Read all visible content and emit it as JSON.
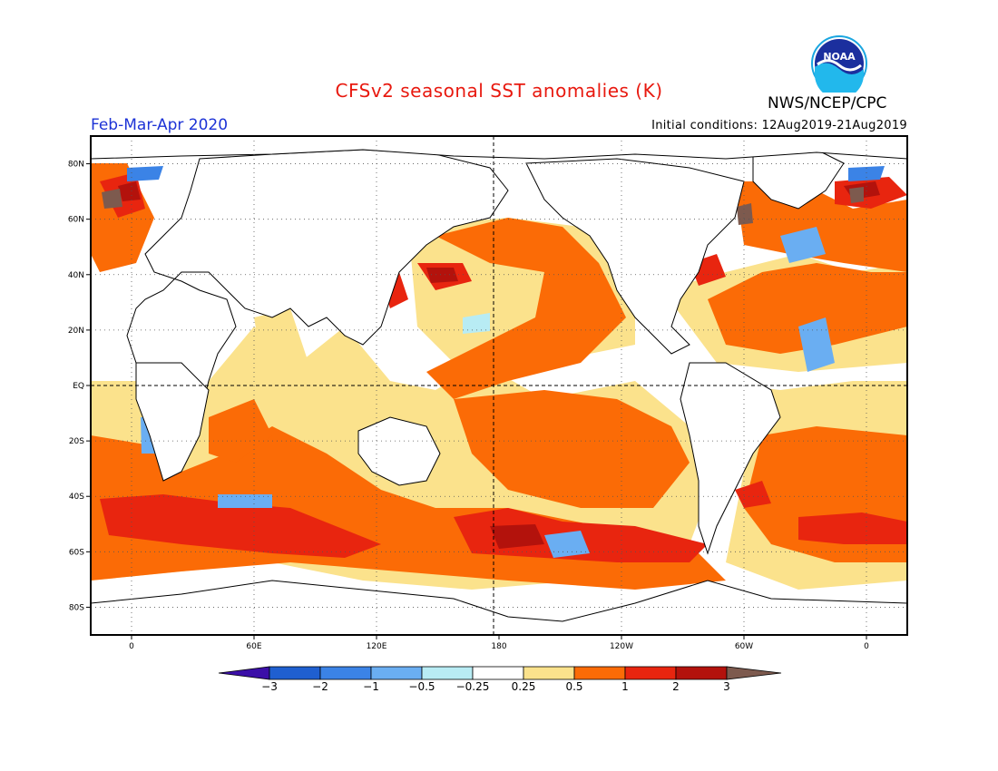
{
  "header": {
    "title": "CFSv2 seasonal SST anomalies (K)",
    "organization": "NWS/NCEP/CPC",
    "logo_text": "NOAA",
    "period": "Feb-Mar-Apr 2020",
    "initial_conditions": "Initial conditions: 12Aug2019-21Aug2019"
  },
  "map": {
    "projection": "equirectangular",
    "lon_range": [
      -20,
      380
    ],
    "lat_range": [
      -90,
      90
    ],
    "lat_labels": [
      "80N",
      "60N",
      "40N",
      "20N",
      "EQ",
      "20S",
      "40S",
      "60S",
      "80S"
    ],
    "lon_labels": [
      "0",
      "60E",
      "120E",
      "180",
      "120W",
      "60W",
      "0"
    ]
  },
  "legend": {
    "labels": [
      "-3",
      "-2",
      "-1",
      "-0.5",
      "-0.25",
      "0.25",
      "0.5",
      "1",
      "2",
      "3"
    ],
    "colors": {
      "lt_m3": "#3b0fa8",
      "m3_m2": "#1f5fd0",
      "m2_m1": "#3b83e6",
      "m1_m05": "#6aaef2",
      "m05_m025": "#b8ecf4",
      "neutral": "#ffffff",
      "p025_p05": "#fbe28c",
      "p05_p1": "#fb6b06",
      "p1_p2": "#e8250f",
      "p2_p3": "#b3120c",
      "gt_p3": "#7d5a4e"
    }
  }
}
